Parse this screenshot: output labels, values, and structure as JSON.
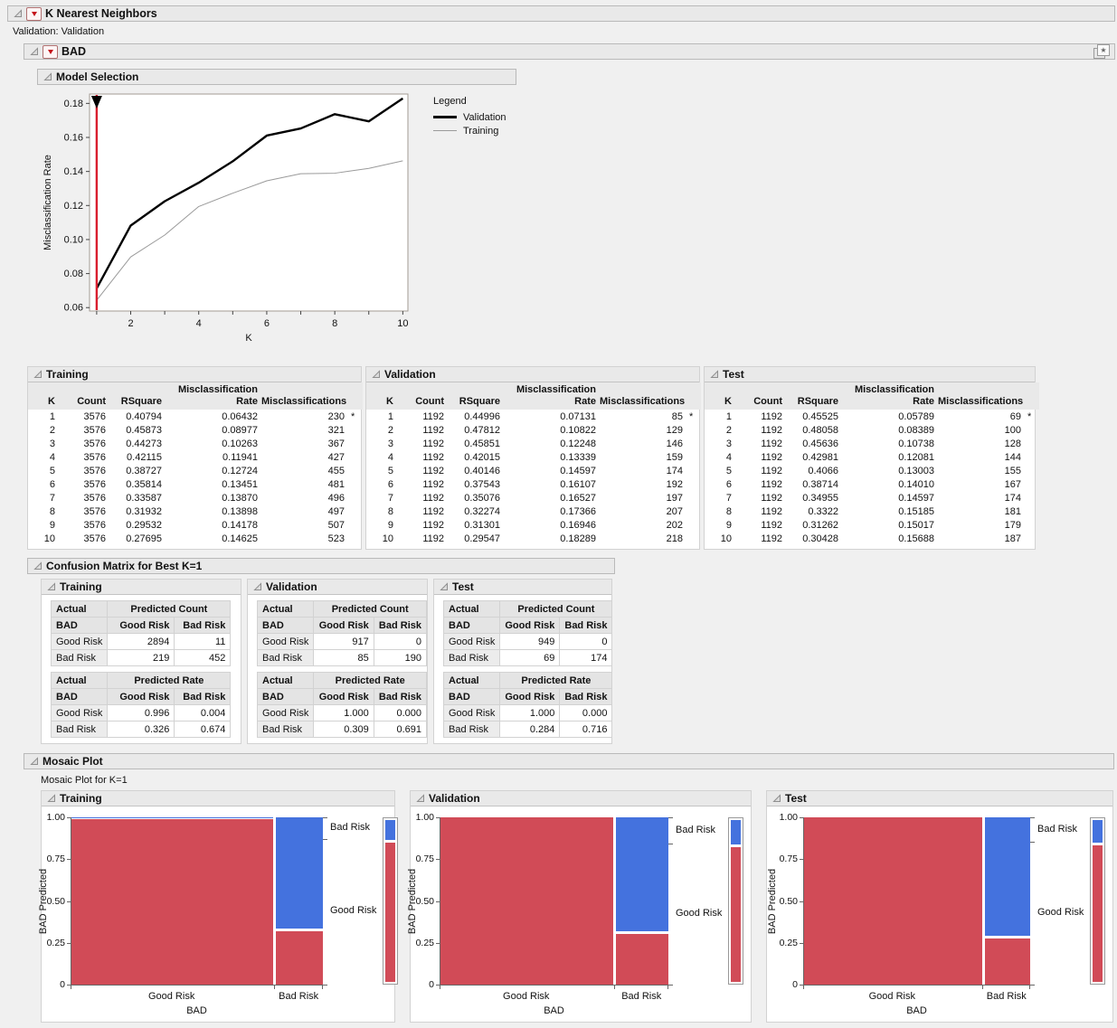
{
  "report": {
    "title": "K Nearest Neighbors",
    "validation_note": "Validation: Validation",
    "response_title": "BAD"
  },
  "model_selection": {
    "title": "Model Selection",
    "chart_data": {
      "type": "line",
      "xlabel": "K",
      "ylabel": "Misclassification Rate",
      "x": [
        1,
        2,
        3,
        4,
        5,
        6,
        7,
        8,
        9,
        10
      ],
      "series": [
        {
          "name": "Validation",
          "color": "#000000",
          "width": 2.4,
          "values": [
            0.07131,
            0.10822,
            0.12248,
            0.13339,
            0.14597,
            0.16107,
            0.16527,
            0.17366,
            0.16946,
            0.18289
          ]
        },
        {
          "name": "Training",
          "color": "#9a9a9a",
          "width": 1,
          "values": [
            0.06432,
            0.08977,
            0.10263,
            0.11941,
            0.12724,
            0.13451,
            0.1387,
            0.13898,
            0.14178,
            0.14625
          ]
        }
      ],
      "xticks": [
        2,
        4,
        6,
        8,
        10
      ],
      "yticks": [
        0.06,
        0.08,
        0.1,
        0.12,
        0.14,
        0.16,
        0.18
      ],
      "xlim": [
        0.79,
        10.15
      ],
      "ylim": [
        0.058,
        0.1855
      ],
      "selected_k": 1,
      "selection_line_color": "#d91e2e",
      "legend_title": "Legend",
      "legend_position": "right"
    }
  },
  "fit_tables": {
    "columns": {
      "k": "K",
      "count": "Count",
      "rsquare": "RSquare",
      "rate_line1": "Misclassification",
      "rate_line2": "Rate",
      "misclassifications": "Misclassifications"
    },
    "panels": [
      {
        "title": "Training",
        "rows": [
          [
            "1",
            "3576",
            "0.40794",
            "0.06432",
            "230",
            "*"
          ],
          [
            "2",
            "3576",
            "0.45873",
            "0.08977",
            "321",
            ""
          ],
          [
            "3",
            "3576",
            "0.44273",
            "0.10263",
            "367",
            ""
          ],
          [
            "4",
            "3576",
            "0.42115",
            "0.11941",
            "427",
            ""
          ],
          [
            "5",
            "3576",
            "0.38727",
            "0.12724",
            "455",
            ""
          ],
          [
            "6",
            "3576",
            "0.35814",
            "0.13451",
            "481",
            ""
          ],
          [
            "7",
            "3576",
            "0.33587",
            "0.13870",
            "496",
            ""
          ],
          [
            "8",
            "3576",
            "0.31932",
            "0.13898",
            "497",
            ""
          ],
          [
            "9",
            "3576",
            "0.29532",
            "0.14178",
            "507",
            ""
          ],
          [
            "10",
            "3576",
            "0.27695",
            "0.14625",
            "523",
            ""
          ]
        ]
      },
      {
        "title": "Validation",
        "rows": [
          [
            "1",
            "1192",
            "0.44996",
            "0.07131",
            "85",
            "*"
          ],
          [
            "2",
            "1192",
            "0.47812",
            "0.10822",
            "129",
            ""
          ],
          [
            "3",
            "1192",
            "0.45851",
            "0.12248",
            "146",
            ""
          ],
          [
            "4",
            "1192",
            "0.42015",
            "0.13339",
            "159",
            ""
          ],
          [
            "5",
            "1192",
            "0.40146",
            "0.14597",
            "174",
            ""
          ],
          [
            "6",
            "1192",
            "0.37543",
            "0.16107",
            "192",
            ""
          ],
          [
            "7",
            "1192",
            "0.35076",
            "0.16527",
            "197",
            ""
          ],
          [
            "8",
            "1192",
            "0.32274",
            "0.17366",
            "207",
            ""
          ],
          [
            "9",
            "1192",
            "0.31301",
            "0.16946",
            "202",
            ""
          ],
          [
            "10",
            "1192",
            "0.29547",
            "0.18289",
            "218",
            ""
          ]
        ]
      },
      {
        "title": "Test",
        "rows": [
          [
            "1",
            "1192",
            "0.45525",
            "0.05789",
            "69",
            "*"
          ],
          [
            "2",
            "1192",
            "0.48058",
            "0.08389",
            "100",
            ""
          ],
          [
            "3",
            "1192",
            "0.45636",
            "0.10738",
            "128",
            ""
          ],
          [
            "4",
            "1192",
            "0.42981",
            "0.12081",
            "144",
            ""
          ],
          [
            "5",
            "1192",
            "0.4066",
            "0.13003",
            "155",
            ""
          ],
          [
            "6",
            "1192",
            "0.38714",
            "0.14010",
            "167",
            ""
          ],
          [
            "7",
            "1192",
            "0.34955",
            "0.14597",
            "174",
            ""
          ],
          [
            "8",
            "1192",
            "0.3322",
            "0.15185",
            "181",
            ""
          ],
          [
            "9",
            "1192",
            "0.31262",
            "0.15017",
            "179",
            ""
          ],
          [
            "10",
            "1192",
            "0.30428",
            "0.15688",
            "187",
            ""
          ]
        ]
      }
    ]
  },
  "confusion": {
    "title": "Confusion Matrix for Best K=1",
    "header": {
      "actual": "Actual",
      "response": "BAD",
      "predicted_count": "Predicted Count",
      "predicted_rate": "Predicted Rate",
      "levels": [
        "Good Risk",
        "Bad Risk"
      ]
    },
    "panels": [
      {
        "title": "Training",
        "count_rows": [
          [
            "Good Risk",
            "2894",
            "11"
          ],
          [
            "Bad Risk",
            "219",
            "452"
          ]
        ],
        "rate_rows": [
          [
            "Good Risk",
            "0.996",
            "0.004"
          ],
          [
            "Bad Risk",
            "0.326",
            "0.674"
          ]
        ]
      },
      {
        "title": "Validation",
        "count_rows": [
          [
            "Good Risk",
            "917",
            "0"
          ],
          [
            "Bad Risk",
            "85",
            "190"
          ]
        ],
        "rate_rows": [
          [
            "Good Risk",
            "1.000",
            "0.000"
          ],
          [
            "Bad Risk",
            "0.309",
            "0.691"
          ]
        ]
      },
      {
        "title": "Test",
        "count_rows": [
          [
            "Good Risk",
            "949",
            "0"
          ],
          [
            "Bad Risk",
            "69",
            "174"
          ]
        ],
        "rate_rows": [
          [
            "Good Risk",
            "1.000",
            "0.000"
          ],
          [
            "Bad Risk",
            "0.284",
            "0.716"
          ]
        ]
      }
    ]
  },
  "mosaic": {
    "title": "Mosaic Plot",
    "subtitle": "Mosaic Plot for K=1",
    "xlabel": "BAD",
    "ylabel": "BAD Predicted",
    "yticks": [
      "1.00",
      "0.75",
      "0.50",
      "0.25",
      "0"
    ],
    "colors": {
      "good_risk": "#d14b57",
      "bad_risk": "#4472de"
    },
    "panels": [
      {
        "title": "Training",
        "columns": [
          {
            "label": "Good Risk",
            "width": 0.812,
            "good": 0.996,
            "bad": 0.004
          },
          {
            "label": "Bad Risk",
            "width": 0.188,
            "good": 0.326,
            "bad": 0.674
          }
        ],
        "marginal": {
          "good": 0.871,
          "bad": 0.129
        },
        "right_labels": [
          "Bad Risk",
          "Good Risk"
        ]
      },
      {
        "title": "Validation",
        "columns": [
          {
            "label": "Good Risk",
            "width": 0.769,
            "good": 1.0,
            "bad": 0.0
          },
          {
            "label": "Bad Risk",
            "width": 0.231,
            "good": 0.309,
            "bad": 0.691
          }
        ],
        "marginal": {
          "good": 0.841,
          "bad": 0.159
        },
        "right_labels": [
          "Bad Risk",
          "Good Risk"
        ]
      },
      {
        "title": "Test",
        "columns": [
          {
            "label": "Good Risk",
            "width": 0.796,
            "good": 1.0,
            "bad": 0.0
          },
          {
            "label": "Bad Risk",
            "width": 0.204,
            "good": 0.284,
            "bad": 0.716
          }
        ],
        "marginal": {
          "good": 0.854,
          "bad": 0.146
        },
        "right_labels": [
          "Bad Risk",
          "Good Risk"
        ]
      }
    ]
  }
}
